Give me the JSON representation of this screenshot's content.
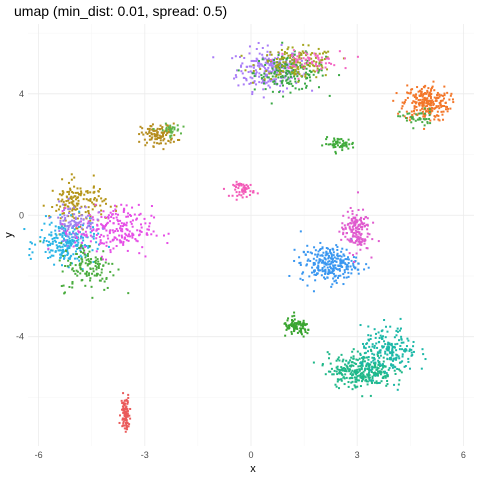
{
  "chart_data": {
    "type": "scatter",
    "title": "umap (min_dist: 0.01, spread: 0.5)",
    "xlabel": "x",
    "ylabel": "y",
    "xlim": [
      -6.3,
      6.3
    ],
    "ylim": [
      -7.6,
      6.3
    ],
    "x_ticks": [
      -6,
      -3,
      0,
      3,
      6
    ],
    "y_ticks": [
      -4,
      0,
      4
    ],
    "x_tick_labels": [
      "-6",
      "-3",
      "0",
      "3",
      "6"
    ],
    "y_tick_labels": [
      "-4",
      "0",
      "4"
    ],
    "grid": true,
    "legend": "none",
    "clusters": [
      {
        "name": "c-top-purple",
        "color": "#a97cf7",
        "cx": 0.5,
        "cy": 4.8,
        "sx": 0.45,
        "sy": 0.35,
        "n": 220
      },
      {
        "name": "c-top-green",
        "color": "#3aa845",
        "cx": 1.1,
        "cy": 4.7,
        "sx": 0.5,
        "sy": 0.3,
        "n": 160
      },
      {
        "name": "c-top-olive",
        "color": "#a3a51c",
        "cx": 1.3,
        "cy": 5.0,
        "sx": 0.55,
        "sy": 0.25,
        "n": 140
      },
      {
        "name": "c-top-pink",
        "color": "#f466c4",
        "cx": 1.6,
        "cy": 5.1,
        "sx": 0.45,
        "sy": 0.15,
        "n": 60
      },
      {
        "name": "c-orange",
        "color": "#f3772a",
        "cx": 4.95,
        "cy": 3.7,
        "sx": 0.32,
        "sy": 0.3,
        "n": 240
      },
      {
        "name": "c-orange-green",
        "color": "#4bab47",
        "cx": 4.7,
        "cy": 3.2,
        "sx": 0.25,
        "sy": 0.15,
        "n": 40
      },
      {
        "name": "c-olive-small",
        "color": "#b58d1f",
        "cx": -2.6,
        "cy": 2.65,
        "sx": 0.25,
        "sy": 0.18,
        "n": 100
      },
      {
        "name": "c-olive-green",
        "color": "#5eb44a",
        "cx": -2.3,
        "cy": 2.8,
        "sx": 0.15,
        "sy": 0.1,
        "n": 30
      },
      {
        "name": "c-green-small",
        "color": "#3faa3a",
        "cx": 2.5,
        "cy": 2.35,
        "sx": 0.22,
        "sy": 0.1,
        "n": 55
      },
      {
        "name": "c-pink-small",
        "color": "#f35ab8",
        "cx": -0.2,
        "cy": 0.85,
        "sx": 0.15,
        "sy": 0.12,
        "n": 55
      },
      {
        "name": "c-left-olive",
        "color": "#b59518",
        "cx": -4.9,
        "cy": 0.4,
        "sx": 0.4,
        "sy": 0.35,
        "n": 160
      },
      {
        "name": "c-left-cyan",
        "color": "#28b4e6",
        "cx": -5.2,
        "cy": -0.9,
        "sx": 0.4,
        "sy": 0.35,
        "n": 220
      },
      {
        "name": "c-left-magenta",
        "color": "#e64ee6",
        "cx": -3.9,
        "cy": -0.5,
        "sx": 0.55,
        "sy": 0.4,
        "n": 220
      },
      {
        "name": "c-left-green",
        "color": "#4aac3e",
        "cx": -4.6,
        "cy": -1.7,
        "sx": 0.4,
        "sy": 0.4,
        "n": 130
      },
      {
        "name": "c-left-purple",
        "color": "#a07ef0",
        "cx": -5.0,
        "cy": -0.2,
        "sx": 0.3,
        "sy": 0.3,
        "n": 80
      },
      {
        "name": "c-blue",
        "color": "#3a97f0",
        "cx": 2.2,
        "cy": -1.6,
        "sx": 0.4,
        "sy": 0.3,
        "n": 260
      },
      {
        "name": "c-magenta-mid",
        "color": "#e05bcf",
        "cx": 2.95,
        "cy": -0.5,
        "sx": 0.2,
        "sy": 0.35,
        "n": 160
      },
      {
        "name": "c-teal",
        "color": "#1fb889",
        "cx": 3.1,
        "cy": -5.1,
        "sx": 0.45,
        "sy": 0.28,
        "n": 300
      },
      {
        "name": "c-teal-arm",
        "color": "#1cb8a8",
        "cx": 3.9,
        "cy": -4.5,
        "sx": 0.4,
        "sy": 0.4,
        "n": 200
      },
      {
        "name": "c-green-arm",
        "color": "#3aa530",
        "cx": 1.3,
        "cy": -3.7,
        "sx": 0.2,
        "sy": 0.15,
        "n": 90
      },
      {
        "name": "c-red-bottom",
        "color": "#ea5b5b",
        "cx": -3.55,
        "cy": -6.5,
        "sx": 0.06,
        "sy": 0.3,
        "n": 90
      }
    ]
  }
}
